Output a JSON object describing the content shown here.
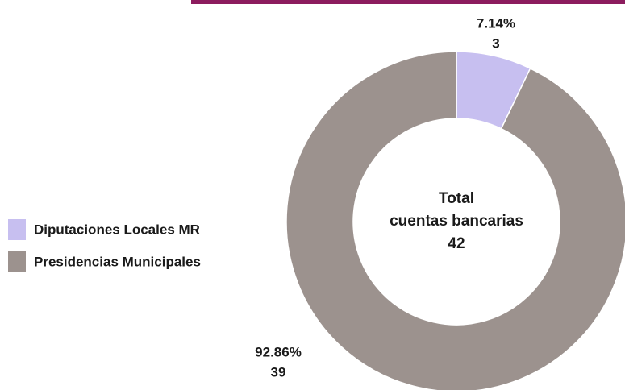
{
  "chart_data": {
    "type": "donut",
    "categories": [
      "Diputaciones Locales MR",
      "Presidencias Municipales"
    ],
    "values": [
      3,
      39
    ],
    "percentages": [
      7.14,
      92.86
    ],
    "percentage_labels": [
      "7.14%",
      "92.86%"
    ],
    "colors": [
      "#c7bff0",
      "#9c928e"
    ],
    "center_label": [
      "Total",
      "cuentas bancarias"
    ],
    "total": 42,
    "legend": "left"
  }
}
